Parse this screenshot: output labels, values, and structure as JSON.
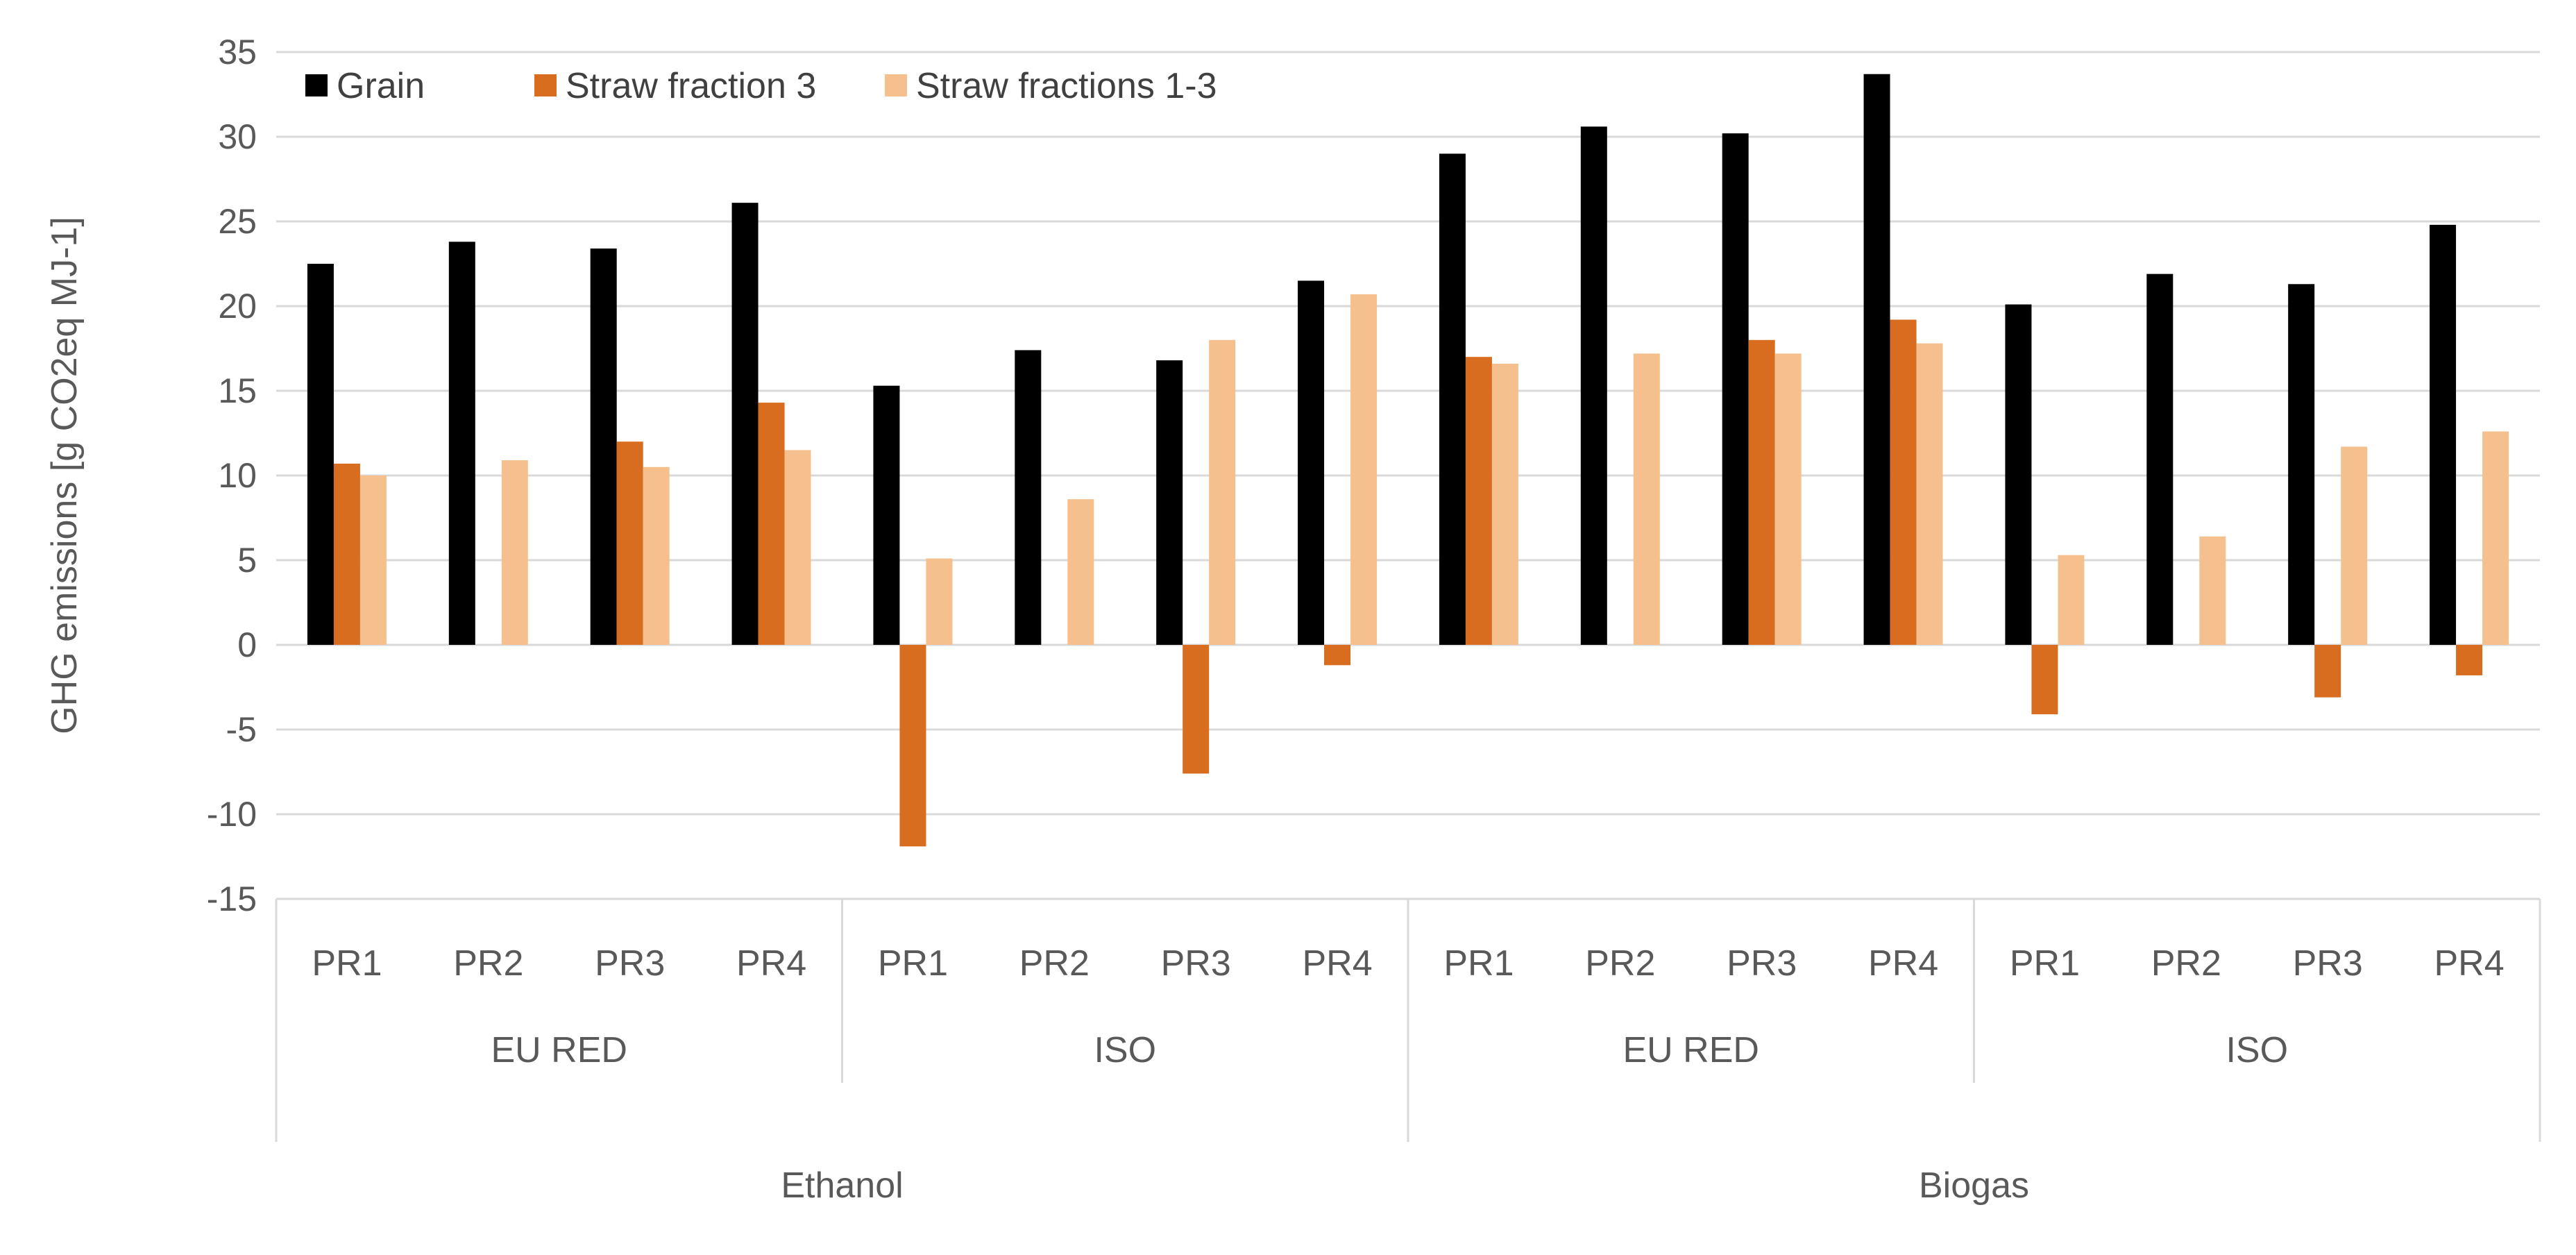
{
  "chart_data": {
    "type": "bar",
    "ylabel": "GHG emissions [g CO2eq MJ-1]",
    "ylim": [
      -15,
      35
    ],
    "yticks": [
      -15,
      -10,
      -5,
      0,
      5,
      10,
      15,
      20,
      25,
      30,
      35
    ],
    "grid": true,
    "legend_position": "top-left",
    "categories": [
      "PR1",
      "PR2",
      "PR3",
      "PR4",
      "PR1",
      "PR2",
      "PR3",
      "PR4",
      "PR1",
      "PR2",
      "PR3",
      "PR4",
      "PR1",
      "PR2",
      "PR3",
      "PR4"
    ],
    "groups_level1": [
      {
        "label": "EU RED",
        "span": 4
      },
      {
        "label": "ISO",
        "span": 4
      },
      {
        "label": "EU RED",
        "span": 4
      },
      {
        "label": "ISO",
        "span": 4
      }
    ],
    "groups_level2": [
      {
        "label": "Ethanol",
        "span": 8
      },
      {
        "label": "Biogas",
        "span": 8
      }
    ],
    "series": [
      {
        "name": "Grain",
        "color": "#000000",
        "values": [
          22.5,
          23.8,
          23.4,
          26.1,
          15.3,
          17.4,
          16.8,
          21.5,
          29.0,
          30.6,
          30.2,
          33.7,
          20.1,
          21.9,
          21.3,
          24.8
        ]
      },
      {
        "name": "Straw fraction 3",
        "color": "#d86d1f",
        "values": [
          10.7,
          null,
          12.0,
          14.3,
          -11.9,
          null,
          -7.6,
          -1.2,
          17.0,
          null,
          18.0,
          19.2,
          -4.1,
          null,
          -3.1,
          -1.8
        ]
      },
      {
        "name": "Straw fractions 1-3",
        "color": "#f5c08e",
        "values": [
          10.0,
          10.9,
          10.5,
          11.5,
          5.1,
          8.6,
          18.0,
          20.7,
          16.6,
          17.2,
          17.2,
          17.8,
          5.3,
          6.4,
          11.7,
          12.6
        ]
      }
    ]
  }
}
